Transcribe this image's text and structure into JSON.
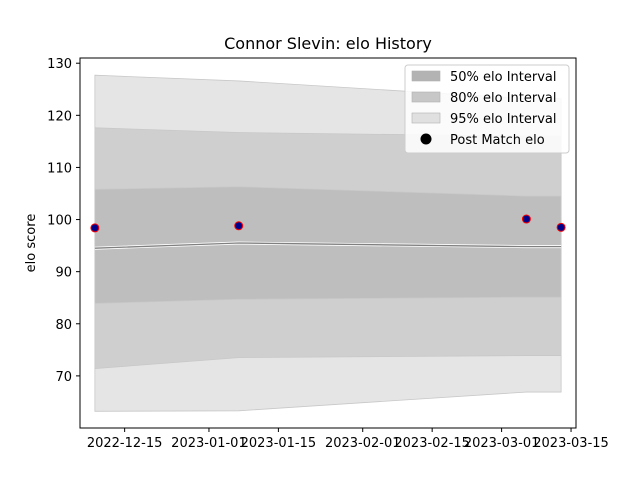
{
  "chart_data": {
    "type": "area",
    "title": "Connor Slevin: elo History",
    "xlabel": "",
    "ylabel": "elo score",
    "x_range": [
      "2022-12-06",
      "2023-03-16"
    ],
    "ylim": [
      60,
      131
    ],
    "x_ticks": [
      "2022-12-15",
      "2023-01-01",
      "2023-01-15",
      "2023-02-01",
      "2023-02-15",
      "2023-03-01",
      "2023-03-15"
    ],
    "y_ticks": [
      70,
      80,
      90,
      100,
      110,
      120,
      130
    ],
    "grid": false,
    "legend_position": "top-right",
    "dates": [
      "2022-12-09",
      "2023-01-07",
      "2023-03-06",
      "2023-03-13"
    ],
    "mean": [
      94.5,
      95.5,
      94.8,
      94.8
    ],
    "bands": [
      {
        "name": "95% elo Interval",
        "color": "#e5e5e5",
        "lower": [
          63.2,
          63.3,
          66.9,
          66.9
        ],
        "upper": [
          127.7,
          126.6,
          123.2,
          123.2
        ]
      },
      {
        "name": "80% elo Interval",
        "color": "#cfcfcf",
        "lower": [
          71.4,
          73.5,
          73.9,
          73.9
        ],
        "upper": [
          117.6,
          116.7,
          116.0,
          116.0
        ]
      },
      {
        "name": "50% elo Interval",
        "color": "#bebebe",
        "lower": [
          83.9,
          84.7,
          85.1,
          85.1
        ],
        "upper": [
          105.8,
          106.3,
          104.5,
          104.5
        ]
      }
    ],
    "legend_band_colors": [
      "#b3b3b3",
      "#c7c7c7",
      "#e0e0e0"
    ],
    "points": {
      "name": "Post Match elo",
      "dates": [
        "2022-12-09",
        "2023-01-07",
        "2023-03-06",
        "2023-03-13"
      ],
      "values": [
        98.4,
        98.8,
        100.1,
        98.5
      ],
      "color": "#00008b",
      "edge_color": "#ff0000"
    },
    "legend": [
      "50% elo Interval",
      "80% elo Interval",
      "95% elo Interval",
      "Post Match elo"
    ]
  }
}
